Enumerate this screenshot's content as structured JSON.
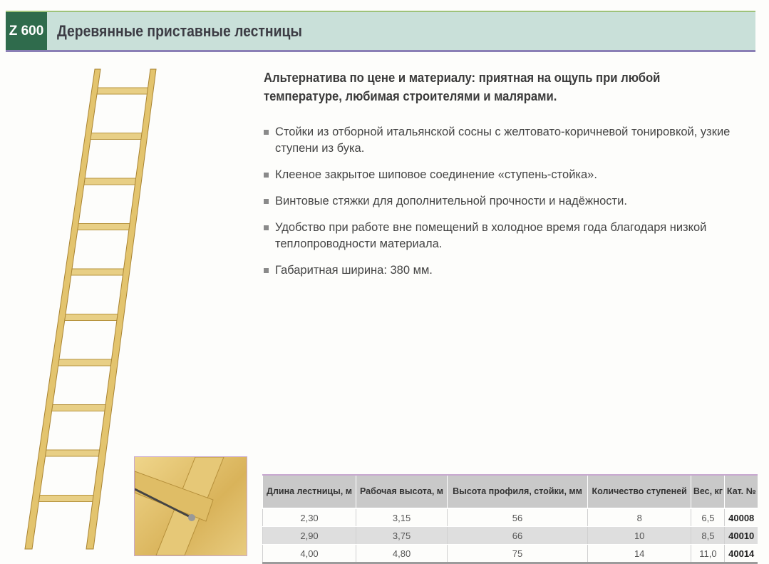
{
  "header": {
    "code": "Z 600",
    "title": "Деревянные приставные лестницы"
  },
  "lead": "Альтернатива по цене и материалу: приятная на ощупь при любой температуре, любимая строителями и малярами.",
  "features": [
    "Стойки из отборной итальянской сосны с желтовато-коричневой тонировкой, узкие ступени из бука.",
    "Клееное закрытое шиповое соединение «ступень-стойка».",
    "Винтовые стяжки для дополнительной прочности и надёжности.",
    "Удобство при работе вне помещений в холодное время года благодаря низкой теплопроводности материала.",
    "Габаритная ширина: 380 мм."
  ],
  "table": {
    "headers": [
      "Длина лестницы, м",
      "Рабочая высота, м",
      "Высота профиля, стойки, мм",
      "Количество ступеней",
      "Вес, кг",
      "Кат. №"
    ],
    "rows": [
      [
        "2,30",
        "3,15",
        "56",
        "8",
        "6,5",
        "40008"
      ],
      [
        "2,90",
        "3,75",
        "66",
        "10",
        "8,5",
        "40010"
      ],
      [
        "4,00",
        "4,80",
        "75",
        "14",
        "11,0",
        "40014"
      ]
    ]
  },
  "colors": {
    "badge": "#2f6b4c",
    "band": "#c9e0d9",
    "wood": "#e3c46e"
  }
}
